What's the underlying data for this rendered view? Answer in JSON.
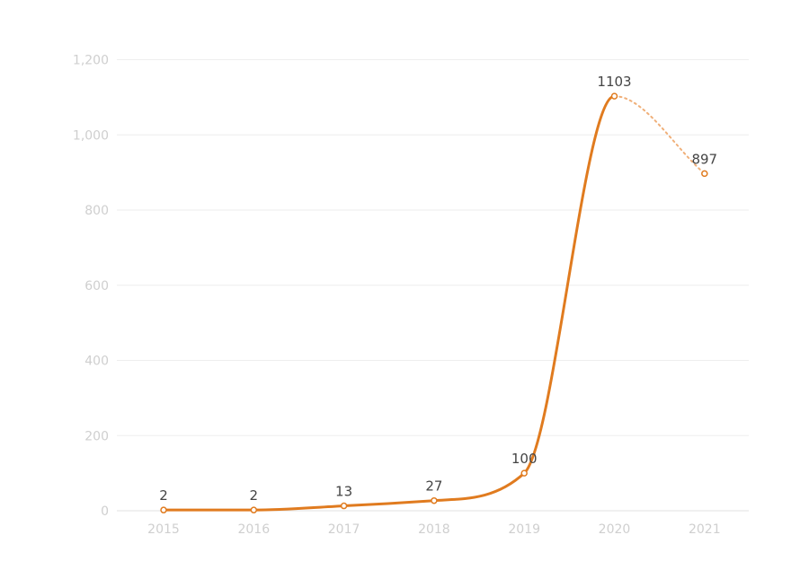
{
  "chart_data": {
    "type": "line",
    "categories": [
      "2015",
      "2016",
      "2017",
      "2018",
      "2019",
      "2020",
      "2021"
    ],
    "values": [
      2,
      2,
      13,
      27,
      100,
      1103,
      897
    ],
    "data_labels": [
      "2",
      "2",
      "13",
      "27",
      "100",
      "1103",
      "897"
    ],
    "y_ticks": [
      0,
      200,
      400,
      600,
      800,
      1000,
      1200
    ],
    "y_tick_labels": [
      "0",
      "200",
      "400",
      "600",
      "800",
      "1,000",
      "1,200"
    ],
    "ylim": [
      0,
      1200
    ],
    "grid": true,
    "dashed_last_segment": true,
    "title": "",
    "xlabel": "",
    "ylabel": ""
  },
  "colors": {
    "line": "#e07b1f",
    "line_dashed": "#f0b07a",
    "point_fill": "#ffffff"
  }
}
